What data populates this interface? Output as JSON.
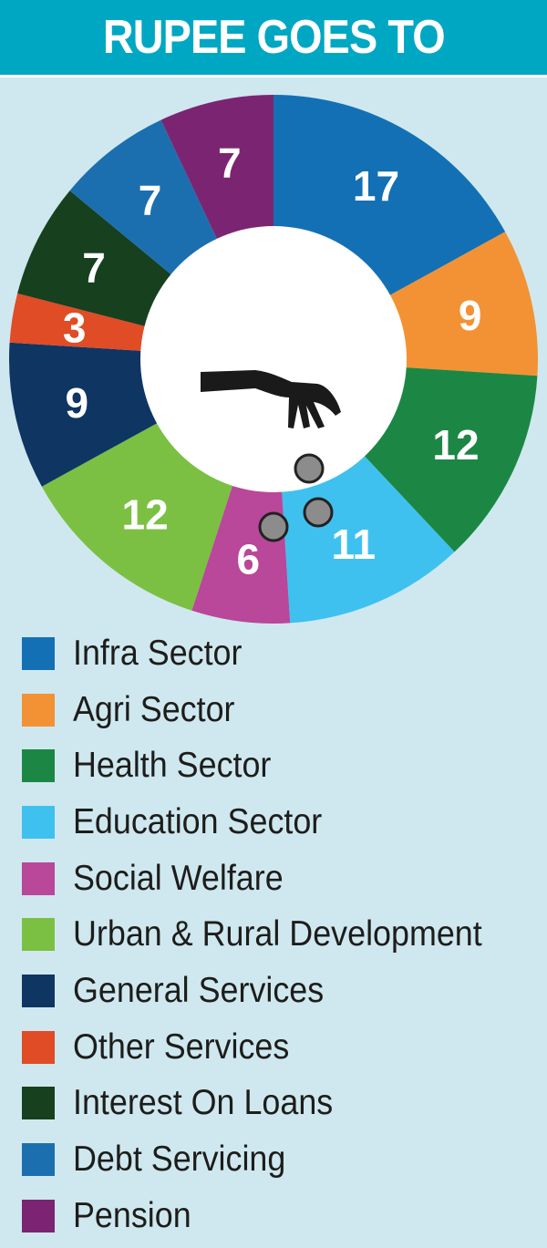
{
  "header": {
    "title": "RUPEE GOES TO"
  },
  "colors": {
    "background": "#cfe8ef",
    "header": "#00a7c3"
  },
  "center_illustration": "hand-dropping-coins-icon",
  "chart_data": {
    "type": "pie",
    "categories": [
      "Infra Sector",
      "Agri Sector",
      "Health Sector",
      "Education Sector",
      "Social Welfare",
      "Urban & Rural Development",
      "General Services",
      "Other Services",
      "Interest On Loans",
      "Debt Servicing",
      "Pension"
    ],
    "values": [
      17,
      9,
      12,
      11,
      6,
      12,
      9,
      3,
      7,
      7,
      7
    ],
    "labels": [
      "17",
      "9",
      "12",
      "11",
      "6",
      "12",
      "9",
      "3",
      "7",
      "7",
      "7"
    ],
    "colors": [
      "#1370b4",
      "#f39234",
      "#1c8744",
      "#3fc1ef",
      "#b9479a",
      "#7bc043",
      "#0f3563",
      "#df4c25",
      "#17401f",
      "#1b6fae",
      "#7b2572"
    ],
    "legend_position": "bottom"
  }
}
